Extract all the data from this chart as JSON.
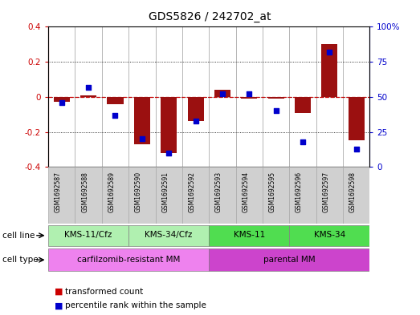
{
  "title": "GDS5826 / 242702_at",
  "samples": [
    "GSM1692587",
    "GSM1692588",
    "GSM1692589",
    "GSM1692590",
    "GSM1692591",
    "GSM1692592",
    "GSM1692593",
    "GSM1692594",
    "GSM1692595",
    "GSM1692596",
    "GSM1692597",
    "GSM1692598"
  ],
  "transformed_count": [
    -0.03,
    0.01,
    -0.04,
    -0.27,
    -0.32,
    -0.14,
    0.04,
    -0.01,
    -0.01,
    -0.09,
    0.3,
    -0.25
  ],
  "percentile_rank": [
    46,
    57,
    37,
    20,
    10,
    33,
    52,
    52,
    40,
    18,
    82,
    13
  ],
  "cell_line_groups": [
    {
      "label": "KMS-11/Cfz",
      "start": 0,
      "end": 3,
      "color": "#b0f0b0"
    },
    {
      "label": "KMS-34/Cfz",
      "start": 3,
      "end": 6,
      "color": "#b0f0b0"
    },
    {
      "label": "KMS-11",
      "start": 6,
      "end": 9,
      "color": "#50dd50"
    },
    {
      "label": "KMS-34",
      "start": 9,
      "end": 12,
      "color": "#50dd50"
    }
  ],
  "cell_type_groups": [
    {
      "label": "carfilzomib-resistant MM",
      "start": 0,
      "end": 6,
      "color": "#ee82ee"
    },
    {
      "label": "parental MM",
      "start": 6,
      "end": 12,
      "color": "#cc44cc"
    }
  ],
  "bar_color": "#9b1010",
  "dot_color": "#0000cc",
  "left_ylim": [
    -0.4,
    0.4
  ],
  "right_ylim": [
    0,
    100
  ],
  "left_yticks": [
    -0.4,
    -0.2,
    0.0,
    0.2,
    0.4
  ],
  "right_yticks": [
    0,
    25,
    50,
    75,
    100
  ],
  "right_yticklabels": [
    "0",
    "25",
    "50",
    "75",
    "100%"
  ],
  "legend_items": [
    {
      "label": "transformed count",
      "color": "#cc0000"
    },
    {
      "label": "percentile rank within the sample",
      "color": "#0000cc"
    }
  ],
  "sample_box_color": "#d0d0d0",
  "sample_box_edge": "#aaaaaa"
}
